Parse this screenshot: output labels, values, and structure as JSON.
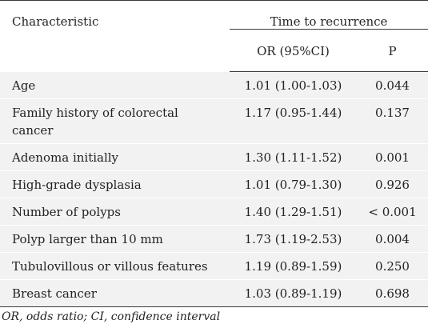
{
  "table": {
    "header": {
      "characteristic": "Characteristic",
      "group": "Time to recurrence",
      "or": "OR (95%CI)",
      "p": "P"
    },
    "rows": [
      {
        "characteristic": "Age",
        "or": "1.01 (1.00-1.03)",
        "p": "0.044"
      },
      {
        "characteristic": "Family history of colorectal cancer",
        "or": "1.17 (0.95-1.44)",
        "p": "0.137"
      },
      {
        "characteristic": "Adenoma initially",
        "or": "1.30 (1.11-1.52)",
        "p": "0.001"
      },
      {
        "characteristic": "High-grade dysplasia",
        "or": "1.01 (0.79-1.30)",
        "p": "0.926"
      },
      {
        "characteristic": "Number of polyps",
        "or": "1.40 (1.29-1.51)",
        "p": "< 0.001"
      },
      {
        "characteristic": "Polyp larger than 10 mm",
        "or": "1.73 (1.19-2.53)",
        "p": "0.004"
      },
      {
        "characteristic": "Tubulovillous or villous features",
        "or": "1.19 (0.89-1.59)",
        "p": "0.250"
      },
      {
        "characteristic": "Breast cancer",
        "or": "1.03 (0.89-1.19)",
        "p": "0.698"
      }
    ]
  },
  "footnote": "OR, odds ratio; CI, confidence interval"
}
